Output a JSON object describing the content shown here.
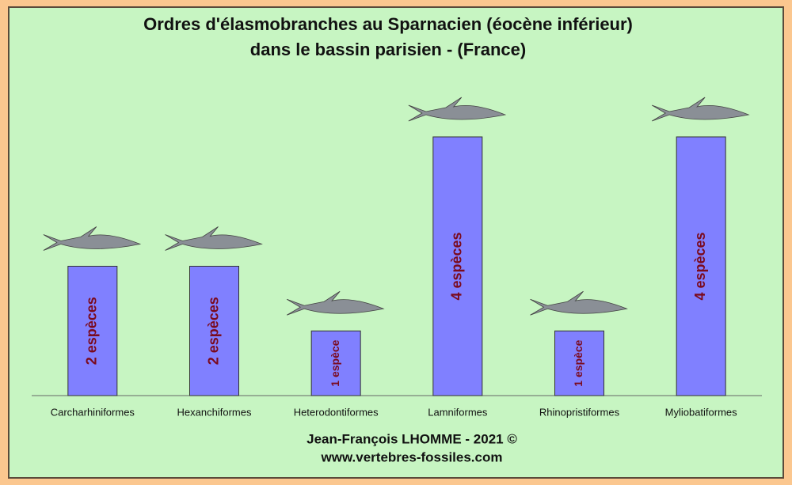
{
  "chart_data": {
    "type": "bar",
    "title": [
      "Ordres d'élasmobranches au Sparnacien (éocène inférieur)",
      "dans le bassin parisien  -  (France)"
    ],
    "categories": [
      "Carcharhiniformes",
      "Hexanchiformes",
      "Heterodontiformes",
      "Lamniformes",
      "Rhinopristiformes",
      "Myliobatiformes"
    ],
    "values": [
      2,
      2,
      1,
      4,
      1,
      4
    ],
    "value_labels": [
      "2 espèces",
      "2 espèces",
      "1 espèce",
      "4 espèces",
      "1 espèce",
      "4 espèces"
    ],
    "color": "#8080ff",
    "ylim": [
      0,
      4
    ],
    "footer": [
      "Jean-François LHOMME - 2021 ©",
      "www.vertebres-fossiles.com"
    ]
  }
}
